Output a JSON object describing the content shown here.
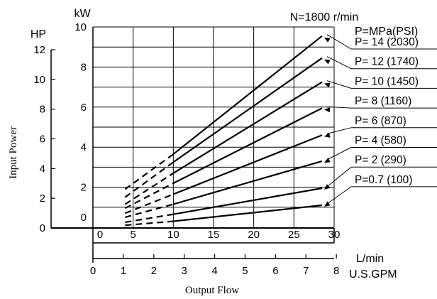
{
  "chart_data": {
    "type": "line",
    "title": "",
    "condition_label": "N=1800 r/min",
    "ylabel": "Input Power",
    "xlabel": "Output Flow",
    "x_units": {
      "primary": "L/min",
      "secondary": "U.S.GPM"
    },
    "y_units": {
      "primary": "kW",
      "secondary": "HP"
    },
    "x_range_lmin": [
      0,
      30
    ],
    "y_range_kw": [
      0,
      10
    ],
    "y_range_hp": [
      0,
      12
    ],
    "x_ticks_lmin": [
      "0",
      "5",
      "10",
      "15",
      "20",
      "25",
      "30"
    ],
    "x_ticks_gpm": [
      "0",
      "1",
      "2",
      "3",
      "4",
      "5",
      "6",
      "7",
      "8"
    ],
    "y_ticks_kw": [
      "0",
      "2",
      "4",
      "6",
      "8",
      "10"
    ],
    "y_ticks_hp": [
      "0",
      "2",
      "4",
      "6",
      "8",
      "10",
      "12"
    ],
    "grid": true,
    "legend_header": "P=MPa(PSI)",
    "dashed_until_lmin": 10,
    "series": [
      {
        "label": "P= 14 (2030)",
        "points": [
          [
            4.0,
            1.9
          ],
          [
            10.0,
            3.65
          ],
          [
            28.5,
            9.55
          ]
        ]
      },
      {
        "label": "P= 12 (1740)",
        "points": [
          [
            4.0,
            1.5
          ],
          [
            10.0,
            3.25
          ],
          [
            28.5,
            8.45
          ]
        ]
      },
      {
        "label": "P= 10 (1450)",
        "points": [
          [
            4.0,
            1.15
          ],
          [
            10.0,
            2.7
          ],
          [
            28.5,
            7.25
          ]
        ]
      },
      {
        "label": "P=   8 (1160)",
        "points": [
          [
            4.0,
            0.95
          ],
          [
            10.0,
            2.2
          ],
          [
            28.5,
            5.95
          ]
        ]
      },
      {
        "label": "P=   6   (870)",
        "points": [
          [
            4.0,
            0.7
          ],
          [
            10.0,
            1.65
          ],
          [
            28.5,
            4.6
          ]
        ]
      },
      {
        "label": "P=   4   (580)",
        "points": [
          [
            4.0,
            0.5
          ],
          [
            10.0,
            1.15
          ],
          [
            28.5,
            3.3
          ]
        ]
      },
      {
        "label": "P=   2   (290)",
        "points": [
          [
            4.0,
            0.25
          ],
          [
            10.0,
            0.65
          ],
          [
            28.5,
            1.95
          ]
        ]
      },
      {
        "label": "P=0.7   (100)",
        "points": [
          [
            4.0,
            0.1
          ],
          [
            10.0,
            0.3
          ],
          [
            28.5,
            1.1
          ]
        ]
      }
    ]
  }
}
